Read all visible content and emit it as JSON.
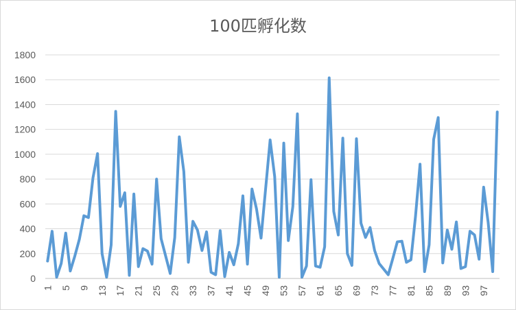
{
  "chart_data": {
    "type": "line",
    "title": "100匹孵化数",
    "xlabel": "",
    "ylabel": "",
    "ylim": [
      0,
      1800
    ],
    "yticks": [
      0,
      200,
      400,
      600,
      800,
      1000,
      1200,
      1400,
      1600,
      1800
    ],
    "xtick_labels": [
      "1",
      "5",
      "9",
      "13",
      "17",
      "21",
      "25",
      "29",
      "33",
      "37",
      "41",
      "45",
      "49",
      "53",
      "57",
      "61",
      "65",
      "69",
      "73",
      "77",
      "81",
      "85",
      "89",
      "93",
      "97"
    ],
    "xtick_values": [
      1,
      5,
      9,
      13,
      17,
      21,
      25,
      29,
      33,
      37,
      41,
      45,
      49,
      53,
      57,
      61,
      65,
      69,
      73,
      77,
      81,
      85,
      89,
      93,
      97
    ],
    "grid": true,
    "legend": "none",
    "line_color": "#5b9bd5",
    "series": [
      {
        "x": [
          1,
          2,
          3,
          4,
          5,
          6,
          7,
          8,
          9,
          10,
          11,
          12,
          13,
          14,
          15,
          16,
          17,
          18,
          19,
          20,
          21,
          22,
          23,
          24,
          25,
          26,
          27,
          28,
          29,
          30,
          31,
          32,
          33,
          34,
          35,
          36,
          37,
          38,
          39,
          40,
          41,
          42,
          43,
          44,
          45,
          46,
          47,
          48,
          49,
          50,
          51,
          52,
          53,
          54,
          55,
          56,
          57,
          58,
          59,
          60,
          61,
          62,
          63,
          64,
          65,
          66,
          67,
          68,
          69,
          70,
          71,
          72,
          73,
          74,
          75,
          76,
          77,
          78,
          79,
          80,
          81,
          82,
          83,
          84,
          85,
          86,
          87,
          88,
          89,
          90,
          91,
          92,
          93,
          94,
          95,
          96,
          97,
          98,
          99,
          100
        ],
        "values": [
          140,
          380,
          10,
          120,
          365,
          60,
          180,
          315,
          505,
          490,
          810,
          1005,
          200,
          10,
          270,
          1345,
          580,
          690,
          25,
          680,
          95,
          240,
          220,
          115,
          800,
          320,
          180,
          40,
          330,
          1140,
          860,
          130,
          460,
          390,
          225,
          375,
          50,
          30,
          385,
          15,
          210,
          110,
          280,
          665,
          115,
          720,
          560,
          325,
          720,
          1115,
          820,
          10,
          1090,
          305,
          580,
          1325,
          10,
          100,
          795,
          100,
          90,
          255,
          1615,
          540,
          350,
          1130,
          200,
          105,
          1125,
          445,
          330,
          410,
          225,
          120,
          75,
          30,
          160,
          295,
          300,
          130,
          150,
          500,
          920,
          55,
          270,
          1120,
          1295,
          125,
          390,
          235,
          455,
          80,
          95,
          380,
          350,
          155,
          735,
          450,
          55,
          1340
        ]
      }
    ]
  }
}
